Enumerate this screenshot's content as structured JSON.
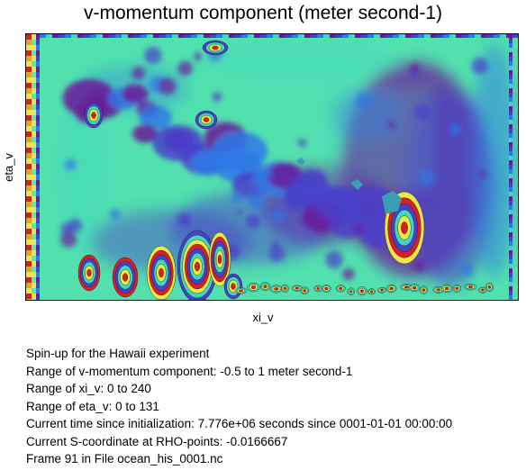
{
  "chart_data": {
    "type": "heatmap",
    "title": "v-momentum component (meter second-1)",
    "xlabel": "xi_v",
    "ylabel": "eta_v",
    "xlim": [
      0,
      240
    ],
    "ylim": [
      0,
      131
    ],
    "value_range": [
      -0.5,
      1
    ],
    "units": "meter second-1",
    "grid": false,
    "legend": "none",
    "colormap": [
      "#6a1b9a",
      "#4a3fc9",
      "#2f78e6",
      "#3fd6c2",
      "#5eeaa8",
      "#e8e84a",
      "#f0a020",
      "#d82020"
    ],
    "background_value_color": "#52e0ae"
  },
  "info": {
    "line1": "Spin-up for the Hawaii experiment",
    "line2": "Range of v-momentum component: -0.5 to 1 meter second-1",
    "line3": "Range of xi_v: 0 to 240",
    "line4": "Range of eta_v: 0 to 131",
    "line5": "Current time since initialization: 7.776e+06 seconds since 0001-01-01 00:00:00",
    "line6": "Current S-coordinate at RHO-points: -0.0166667",
    "line7": "Frame 91 in File ocean_his_0001.nc"
  }
}
